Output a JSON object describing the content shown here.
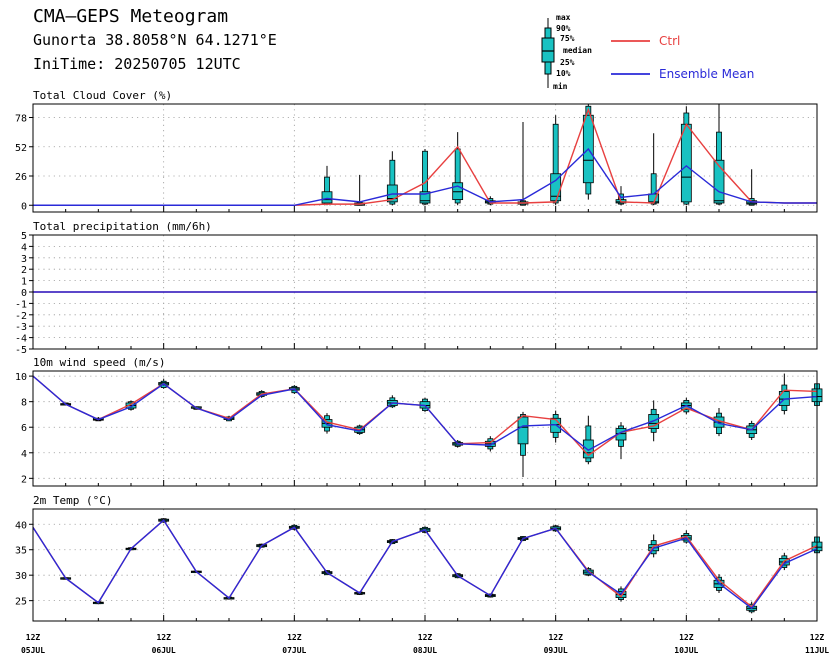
{
  "header": {
    "title": "CMA—GEPS Meteogram",
    "location": "Gunorta 38.8058°N 64.1271°E",
    "init_time": "IniTime: 20250705 12UTC"
  },
  "legend": {
    "box_labels": [
      "max",
      "90%",
      "75%",
      "median",
      "25%",
      "10%",
      "min"
    ],
    "ctrl_label": "Ctrl",
    "mean_label": "Ensemble Mean"
  },
  "colors": {
    "ctrl": "#e84040",
    "mean": "#2a2ad8",
    "box_fill": "#19c2c2",
    "grid": "#9a9a9a"
  },
  "x_axis": {
    "ticks": [
      {
        "hour": 0,
        "top": "12Z",
        "bottom": "05JUL"
      },
      {
        "hour": 24,
        "top": "12Z",
        "bottom": "06JUL"
      },
      {
        "hour": 48,
        "top": "12Z",
        "bottom": "07JUL"
      },
      {
        "hour": 72,
        "top": "12Z",
        "bottom": "08JUL"
      },
      {
        "hour": 96,
        "top": "12Z",
        "bottom": "09JUL"
      },
      {
        "hour": 120,
        "top": "12Z",
        "bottom": "10JUL"
      },
      {
        "hour": 144,
        "top": "12Z",
        "bottom": "11JUL"
      }
    ]
  },
  "chart_data": [
    {
      "type": "box",
      "title": "Total Cloud Cover (%)",
      "ylim": [
        -6,
        90
      ],
      "yticks": [
        0,
        26,
        52,
        78
      ],
      "x": [
        0,
        6,
        12,
        18,
        24,
        30,
        36,
        42,
        48,
        54,
        60,
        66,
        72,
        78,
        84,
        90,
        96,
        102,
        108,
        114,
        120,
        126,
        132,
        138,
        144
      ],
      "ctrl": [
        0,
        0,
        0,
        0,
        0,
        0,
        0,
        0,
        0,
        1,
        1,
        5,
        20,
        52,
        2,
        2,
        3,
        85,
        3,
        2,
        72,
        35,
        3,
        2,
        2
      ],
      "mean": [
        0,
        0,
        0,
        0,
        0,
        0,
        0,
        0,
        0,
        6,
        3,
        10,
        10,
        17,
        3,
        5,
        22,
        50,
        7,
        10,
        35,
        12,
        3,
        2,
        2
      ],
      "boxes": [
        {
          "x": 54,
          "min": 0,
          "p10": 1,
          "p25": 2,
          "median": 5,
          "p75": 12,
          "p90": 25,
          "max": 35
        },
        {
          "x": 60,
          "min": 0,
          "p10": 0,
          "p25": 0,
          "median": 1,
          "p75": 2,
          "p90": 3,
          "max": 27
        },
        {
          "x": 66,
          "min": 0,
          "p10": 1,
          "p25": 3,
          "median": 6,
          "p75": 18,
          "p90": 40,
          "max": 48
        },
        {
          "x": 72,
          "min": 0,
          "p10": 1,
          "p25": 2,
          "median": 4,
          "p75": 12,
          "p90": 48,
          "max": 50
        },
        {
          "x": 78,
          "min": 0,
          "p10": 2,
          "p25": 5,
          "median": 12,
          "p75": 20,
          "p90": 50,
          "max": 65
        },
        {
          "x": 84,
          "min": 0,
          "p10": 1,
          "p25": 2,
          "median": 3,
          "p75": 4,
          "p90": 6,
          "max": 8
        },
        {
          "x": 90,
          "min": 0,
          "p10": 0,
          "p25": 1,
          "median": 2,
          "p75": 3,
          "p90": 4,
          "max": 74
        },
        {
          "x": 96,
          "min": 0,
          "p10": 2,
          "p25": 4,
          "median": 8,
          "p75": 28,
          "p90": 72,
          "max": 80
        },
        {
          "x": 102,
          "min": 5,
          "p10": 10,
          "p25": 20,
          "median": 40,
          "p75": 80,
          "p90": 88,
          "max": 90
        },
        {
          "x": 108,
          "min": 0,
          "p10": 1,
          "p25": 2,
          "median": 3,
          "p75": 5,
          "p90": 10,
          "max": 17
        },
        {
          "x": 114,
          "min": 0,
          "p10": 1,
          "p25": 2,
          "median": 3,
          "p75": 10,
          "p90": 28,
          "max": 64
        },
        {
          "x": 120,
          "min": 0,
          "p10": 1,
          "p25": 3,
          "median": 25,
          "p75": 72,
          "p90": 82,
          "max": 88
        },
        {
          "x": 126,
          "min": 0,
          "p10": 1,
          "p25": 2,
          "median": 4,
          "p75": 40,
          "p90": 65,
          "max": 90
        },
        {
          "x": 132,
          "min": 0,
          "p10": 0,
          "p25": 1,
          "median": 2,
          "p75": 4,
          "p90": 6,
          "max": 32
        }
      ]
    },
    {
      "type": "box",
      "title": "Total precipitation (mm/6h)",
      "ylim": [
        -5,
        5
      ],
      "yticks": [
        -5,
        -4,
        -3,
        -2,
        -1,
        0,
        1,
        2,
        3,
        4,
        5
      ],
      "x": [
        0,
        144
      ],
      "ctrl": [
        0,
        0
      ],
      "mean": [
        0,
        0
      ],
      "boxes": []
    },
    {
      "type": "box",
      "title": "10m wind speed (m/s)",
      "ylim": [
        1.4,
        10.4
      ],
      "yticks": [
        2,
        4,
        6,
        8,
        10
      ],
      "x": [
        0,
        6,
        12,
        18,
        24,
        30,
        36,
        42,
        48,
        54,
        60,
        66,
        72,
        78,
        84,
        90,
        96,
        102,
        108,
        114,
        120,
        126,
        132,
        138,
        144
      ],
      "ctrl": [
        10,
        7.8,
        6.6,
        7.8,
        9.4,
        7.5,
        6.7,
        8.6,
        9.0,
        6.4,
        5.8,
        7.9,
        7.7,
        4.7,
        4.8,
        6.9,
        6.6,
        3.8,
        5.6,
        6.1,
        7.5,
        6.5,
        5.8,
        8.9,
        8.8
      ],
      "mean": [
        10,
        7.8,
        6.6,
        7.6,
        9.4,
        7.5,
        6.6,
        8.5,
        9.0,
        6.2,
        5.7,
        7.9,
        7.7,
        4.7,
        4.6,
        6.1,
        6.2,
        4.2,
        5.6,
        6.5,
        7.7,
        6.3,
        5.8,
        8.2,
        8.4
      ],
      "boxes": [
        {
          "x": 6,
          "min": 7.7,
          "p10": 7.75,
          "p25": 7.8,
          "median": 7.8,
          "p75": 7.85,
          "p90": 7.9,
          "max": 7.9
        },
        {
          "x": 12,
          "min": 6.5,
          "p10": 6.5,
          "p25": 6.55,
          "median": 6.6,
          "p75": 6.7,
          "p90": 6.7,
          "max": 6.8
        },
        {
          "x": 18,
          "min": 7.3,
          "p10": 7.4,
          "p25": 7.5,
          "median": 7.7,
          "p75": 7.9,
          "p90": 8.0,
          "max": 8.1
        },
        {
          "x": 24,
          "min": 9.0,
          "p10": 9.1,
          "p25": 9.3,
          "median": 9.4,
          "p75": 9.5,
          "p90": 9.6,
          "max": 9.8
        },
        {
          "x": 30,
          "min": 7.4,
          "p10": 7.4,
          "p25": 7.5,
          "median": 7.5,
          "p75": 7.6,
          "p90": 7.6,
          "max": 7.6
        },
        {
          "x": 36,
          "min": 6.5,
          "p10": 6.5,
          "p25": 6.6,
          "median": 6.7,
          "p75": 6.8,
          "p90": 6.8,
          "max": 6.9
        },
        {
          "x": 42,
          "min": 8.3,
          "p10": 8.4,
          "p25": 8.5,
          "median": 8.6,
          "p75": 8.7,
          "p90": 8.8,
          "max": 8.9
        },
        {
          "x": 48,
          "min": 8.6,
          "p10": 8.7,
          "p25": 8.9,
          "median": 9.0,
          "p75": 9.1,
          "p90": 9.2,
          "max": 9.3
        },
        {
          "x": 54,
          "min": 5.5,
          "p10": 5.7,
          "p25": 6.0,
          "median": 6.3,
          "p75": 6.6,
          "p90": 6.9,
          "max": 7.1
        },
        {
          "x": 60,
          "min": 5.4,
          "p10": 5.5,
          "p25": 5.6,
          "median": 5.8,
          "p75": 6.0,
          "p90": 6.1,
          "max": 6.2
        },
        {
          "x": 66,
          "min": 7.5,
          "p10": 7.6,
          "p25": 7.7,
          "median": 7.9,
          "p75": 8.1,
          "p90": 8.3,
          "max": 8.5
        },
        {
          "x": 72,
          "min": 7.2,
          "p10": 7.3,
          "p25": 7.5,
          "median": 7.7,
          "p75": 8.0,
          "p90": 8.2,
          "max": 8.3
        },
        {
          "x": 78,
          "min": 4.4,
          "p10": 4.5,
          "p25": 4.6,
          "median": 4.7,
          "p75": 4.8,
          "p90": 4.9,
          "max": 5.0
        },
        {
          "x": 84,
          "min": 4.1,
          "p10": 4.3,
          "p25": 4.5,
          "median": 4.7,
          "p75": 4.9,
          "p90": 5.1,
          "max": 5.3
        },
        {
          "x": 90,
          "min": 2.1,
          "p10": 3.8,
          "p25": 4.7,
          "median": 6.0,
          "p75": 6.8,
          "p90": 7.0,
          "max": 7.2
        },
        {
          "x": 96,
          "min": 4.8,
          "p10": 5.2,
          "p25": 5.6,
          "median": 6.2,
          "p75": 6.7,
          "p90": 7.0,
          "max": 7.3
        },
        {
          "x": 102,
          "min": 3.1,
          "p10": 3.3,
          "p25": 3.6,
          "median": 4.0,
          "p75": 5.0,
          "p90": 6.1,
          "max": 6.9
        },
        {
          "x": 108,
          "min": 3.5,
          "p10": 4.5,
          "p25": 5.0,
          "median": 5.5,
          "p75": 5.9,
          "p90": 6.1,
          "max": 6.4
        },
        {
          "x": 114,
          "min": 4.9,
          "p10": 5.6,
          "p25": 5.9,
          "median": 6.3,
          "p75": 7.0,
          "p90": 7.4,
          "max": 8.1
        },
        {
          "x": 120,
          "min": 7.0,
          "p10": 7.2,
          "p25": 7.4,
          "median": 7.7,
          "p75": 7.9,
          "p90": 8.1,
          "max": 8.3
        },
        {
          "x": 126,
          "min": 5.3,
          "p10": 5.5,
          "p25": 6.0,
          "median": 6.4,
          "p75": 6.8,
          "p90": 7.1,
          "max": 7.5
        },
        {
          "x": 132,
          "min": 5.0,
          "p10": 5.2,
          "p25": 5.5,
          "median": 5.8,
          "p75": 6.1,
          "p90": 6.3,
          "max": 6.5
        },
        {
          "x": 138,
          "min": 7.0,
          "p10": 7.3,
          "p25": 7.7,
          "median": 8.2,
          "p75": 8.8,
          "p90": 9.3,
          "max": 10.2
        },
        {
          "x": 144,
          "min": 7.5,
          "p10": 7.7,
          "p25": 8.0,
          "median": 8.4,
          "p75": 9.0,
          "p90": 9.4,
          "max": 9.7
        }
      ]
    },
    {
      "type": "box",
      "title": "2m Temp (°C)",
      "ylim": [
        21,
        43
      ],
      "yticks": [
        25,
        30,
        35,
        40
      ],
      "x": [
        0,
        6,
        12,
        18,
        24,
        30,
        36,
        42,
        48,
        54,
        60,
        66,
        72,
        78,
        84,
        90,
        96,
        102,
        108,
        114,
        120,
        126,
        132,
        138,
        144
      ],
      "ctrl": [
        39.4,
        29.4,
        24.6,
        35.2,
        40.8,
        30.7,
        25.5,
        35.8,
        39.4,
        30.5,
        26.5,
        36.6,
        38.9,
        29.9,
        26.0,
        37.2,
        39.2,
        30.8,
        25.8,
        35.7,
        37.6,
        29.0,
        23.8,
        32.8,
        35.8
      ],
      "mean": [
        39.4,
        29.4,
        24.6,
        35.2,
        40.8,
        30.7,
        25.5,
        35.8,
        39.4,
        30.5,
        26.5,
        36.6,
        38.9,
        29.9,
        26.0,
        37.2,
        39.2,
        30.6,
        26.3,
        35.3,
        37.3,
        28.4,
        23.5,
        32.3,
        35.2
      ],
      "boxes": [
        {
          "x": 6,
          "min": 29.2,
          "p10": 29.3,
          "p25": 29.3,
          "median": 29.4,
          "p75": 29.5,
          "p90": 29.5,
          "max": 29.6
        },
        {
          "x": 12,
          "min": 24.3,
          "p10": 24.4,
          "p25": 24.5,
          "median": 24.6,
          "p75": 24.7,
          "p90": 24.8,
          "max": 24.9
        },
        {
          "x": 18,
          "min": 34.9,
          "p10": 35.0,
          "p25": 35.1,
          "median": 35.2,
          "p75": 35.3,
          "p90": 35.4,
          "max": 35.5
        },
        {
          "x": 24,
          "min": 40.3,
          "p10": 40.4,
          "p25": 40.6,
          "median": 40.8,
          "p75": 41.0,
          "p90": 41.1,
          "max": 41.2
        },
        {
          "x": 30,
          "min": 30.5,
          "p10": 30.5,
          "p25": 30.6,
          "median": 30.7,
          "p75": 30.8,
          "p90": 30.8,
          "max": 30.9
        },
        {
          "x": 36,
          "min": 25.2,
          "p10": 25.3,
          "p25": 25.4,
          "median": 25.5,
          "p75": 25.6,
          "p90": 25.7,
          "max": 25.8
        },
        {
          "x": 42,
          "min": 35.4,
          "p10": 35.5,
          "p25": 35.6,
          "median": 35.8,
          "p75": 36.0,
          "p90": 36.1,
          "max": 36.2
        },
        {
          "x": 48,
          "min": 38.8,
          "p10": 39.0,
          "p25": 39.2,
          "median": 39.4,
          "p75": 39.6,
          "p90": 39.8,
          "max": 40.0
        },
        {
          "x": 54,
          "min": 30.0,
          "p10": 30.1,
          "p25": 30.3,
          "median": 30.5,
          "p75": 30.7,
          "p90": 30.9,
          "max": 31.0
        },
        {
          "x": 60,
          "min": 26.1,
          "p10": 26.2,
          "p25": 26.3,
          "median": 26.5,
          "p75": 26.6,
          "p90": 26.7,
          "max": 26.8
        },
        {
          "x": 66,
          "min": 36.1,
          "p10": 36.2,
          "p25": 36.4,
          "median": 36.6,
          "p75": 36.8,
          "p90": 37.0,
          "max": 37.1
        },
        {
          "x": 72,
          "min": 38.2,
          "p10": 38.4,
          "p25": 38.6,
          "median": 38.9,
          "p75": 39.2,
          "p90": 39.4,
          "max": 39.6
        },
        {
          "x": 78,
          "min": 29.4,
          "p10": 29.5,
          "p25": 29.7,
          "median": 29.9,
          "p75": 30.1,
          "p90": 30.3,
          "max": 30.4
        },
        {
          "x": 84,
          "min": 25.6,
          "p10": 25.7,
          "p25": 25.8,
          "median": 26.0,
          "p75": 26.2,
          "p90": 26.3,
          "max": 26.4
        },
        {
          "x": 90,
          "min": 36.7,
          "p10": 36.8,
          "p25": 37.0,
          "median": 37.2,
          "p75": 37.4,
          "p90": 37.6,
          "max": 37.7
        },
        {
          "x": 96,
          "min": 38.5,
          "p10": 38.7,
          "p25": 38.9,
          "median": 39.2,
          "p75": 39.5,
          "p90": 39.7,
          "max": 39.9
        },
        {
          "x": 102,
          "min": 29.8,
          "p10": 30.0,
          "p25": 30.2,
          "median": 30.6,
          "p75": 31.0,
          "p90": 31.3,
          "max": 31.6
        },
        {
          "x": 108,
          "min": 24.8,
          "p10": 25.2,
          "p25": 25.6,
          "median": 26.2,
          "p75": 26.8,
          "p90": 27.3,
          "max": 27.8
        },
        {
          "x": 114,
          "min": 33.5,
          "p10": 34.2,
          "p25": 34.8,
          "median": 35.4,
          "p75": 36.0,
          "p90": 36.8,
          "max": 38.0
        },
        {
          "x": 120,
          "min": 36.2,
          "p10": 36.5,
          "p25": 36.9,
          "median": 37.3,
          "p75": 37.8,
          "p90": 38.2,
          "max": 38.8
        },
        {
          "x": 126,
          "min": 26.5,
          "p10": 27.0,
          "p25": 27.6,
          "median": 28.3,
          "p75": 29.0,
          "p90": 29.6,
          "max": 30.2
        },
        {
          "x": 132,
          "min": 22.5,
          "p10": 22.8,
          "p25": 23.1,
          "median": 23.5,
          "p75": 23.9,
          "p90": 24.3,
          "max": 24.8
        },
        {
          "x": 138,
          "min": 31.0,
          "p10": 31.5,
          "p25": 32.0,
          "median": 32.6,
          "p75": 33.3,
          "p90": 33.8,
          "max": 34.4
        },
        {
          "x": 144,
          "min": 34.0,
          "p10": 34.4,
          "p25": 34.8,
          "median": 35.5,
          "p75": 36.5,
          "p90": 37.5,
          "max": 38.0
        }
      ]
    }
  ]
}
